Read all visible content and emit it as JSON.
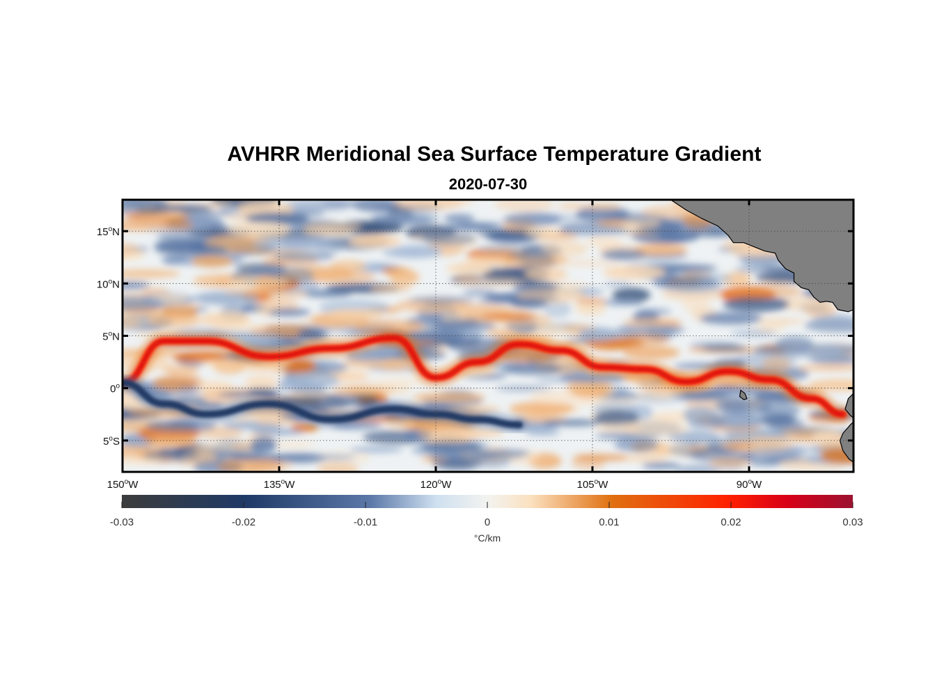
{
  "title": "AVHRR Meridional Sea Surface Temperature Gradient",
  "date": "2020-07-30",
  "map": {
    "lon_range": [
      -150,
      -80
    ],
    "lat_range": [
      -8,
      18
    ],
    "lon_ticks": [
      {
        "value": -150,
        "deg": "150",
        "hem": "W"
      },
      {
        "value": -135,
        "deg": "135",
        "hem": "W"
      },
      {
        "value": -120,
        "deg": "120",
        "hem": "W"
      },
      {
        "value": -105,
        "deg": "105",
        "hem": "W"
      },
      {
        "value": -90,
        "deg": "90",
        "hem": "W"
      }
    ],
    "lat_ticks": [
      {
        "value": 15,
        "deg": "15",
        "hem": "N"
      },
      {
        "value": 10,
        "deg": "10",
        "hem": "N"
      },
      {
        "value": 5,
        "deg": "5",
        "hem": "N"
      },
      {
        "value": 0,
        "deg": "0",
        "hem": ""
      },
      {
        "value": -5,
        "deg": "5",
        "hem": "S"
      }
    ],
    "grid": true,
    "land_color": "#808080"
  },
  "colorbar": {
    "range": [
      -0.03,
      0.03
    ],
    "ticks": [
      {
        "value": -0.03,
        "label": "-0.03"
      },
      {
        "value": -0.02,
        "label": "-0.02"
      },
      {
        "value": -0.01,
        "label": "-0.01"
      },
      {
        "value": 0,
        "label": "0"
      },
      {
        "value": 0.01,
        "label": "0.01"
      },
      {
        "value": 0.02,
        "label": "0.02"
      },
      {
        "value": 0.03,
        "label": "0.03"
      }
    ],
    "units": "°C/km",
    "colors": [
      "#3c3c3c",
      "#1f3a66",
      "#5b78a8",
      "#cfe0f0",
      "#f3f3f0",
      "#fbe0bf",
      "#e07010",
      "#ff2000",
      "#d80018",
      "#9c1230"
    ]
  },
  "chart_data": {
    "type": "heatmap",
    "title": "AVHRR Meridional Sea Surface Temperature Gradient",
    "subtitle": "2020-07-30",
    "xlabel": "",
    "ylabel": "",
    "xlim": [
      -150,
      -80
    ],
    "ylim": [
      -8,
      18
    ],
    "clim": [
      -0.03,
      0.03
    ],
    "colorbar_label": "°C/km",
    "features": [
      {
        "name": "",
        "sign": "positive",
        "lon": [
          -150,
          -146,
          -142,
          -136,
          -130,
          -124,
          -120,
          -116,
          -112,
          -108,
          -104,
          -100,
          -96,
          -92,
          -88,
          -84,
          -81
        ],
        "lat": [
          0.5,
          4.5,
          4.5,
          3.0,
          3.8,
          4.8,
          1.0,
          2.5,
          4.2,
          3.6,
          2.0,
          1.8,
          0.6,
          1.6,
          0.8,
          -1.0,
          -2.5
        ],
        "value": 0.02
      },
      {
        "name": "",
        "sign": "negative",
        "lon": [
          -150,
          -146,
          -142,
          -136,
          -130,
          -124,
          -120,
          -116,
          -112
        ],
        "lat": [
          0.5,
          -1.5,
          -2.5,
          -1.5,
          -3.0,
          -2.0,
          -2.5,
          -3.0,
          -3.5
        ],
        "value": -0.02
      }
    ]
  }
}
